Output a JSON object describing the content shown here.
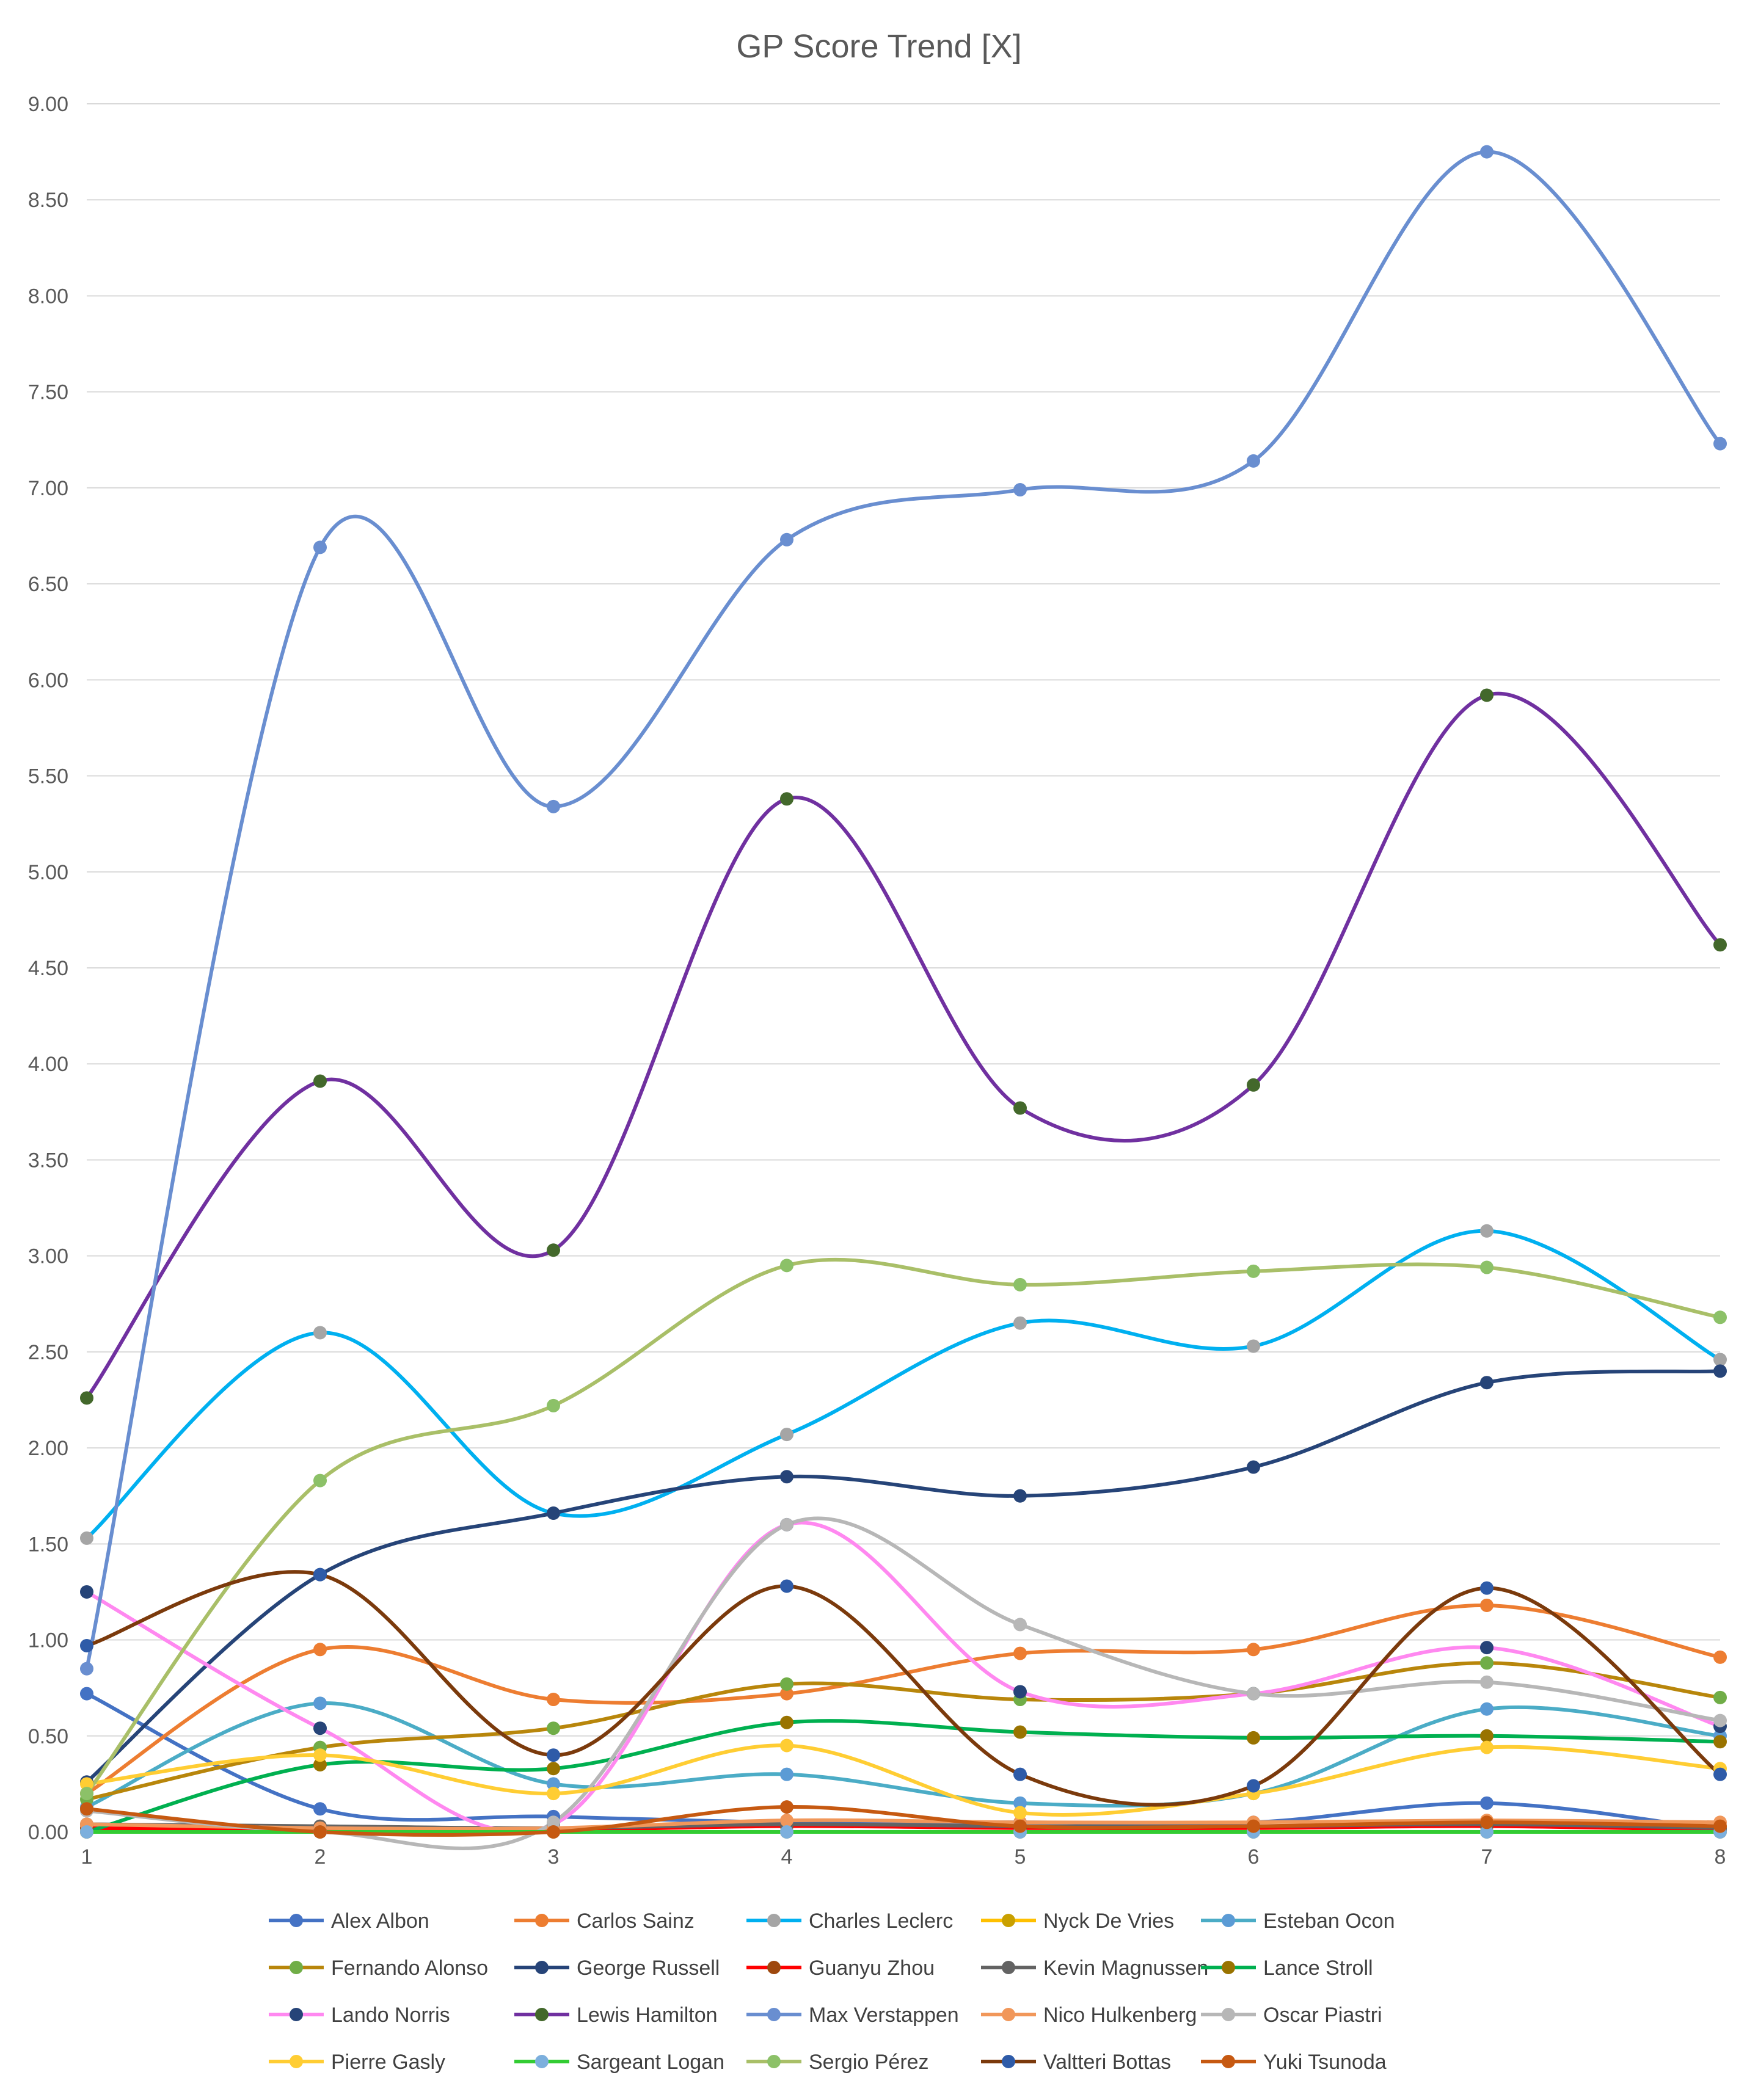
{
  "chart_data": {
    "type": "line",
    "title": "GP Score Trend [X]",
    "xlabel": "",
    "ylabel": "",
    "x": [
      1,
      2,
      3,
      4,
      5,
      6,
      7,
      8
    ],
    "ylim": [
      0,
      9
    ],
    "ytick_step": 0.5,
    "grid": true,
    "smooth": true,
    "legend_position": "bottom",
    "series": [
      {
        "name": "Alex Albon",
        "color": "#4472C4",
        "values": [
          0.72,
          0.12,
          0.08,
          0.05,
          0.05,
          0.05,
          0.15,
          0.01
        ]
      },
      {
        "name": "Carlos Sainz",
        "color": "#ED7D31",
        "values": [
          0.2,
          0.95,
          0.69,
          0.72,
          0.93,
          0.95,
          1.18,
          0.91
        ]
      },
      {
        "name": "Charles Leclerc",
        "color": "#00B0F0",
        "marker_color": "#A5A5A5",
        "values": [
          1.53,
          2.6,
          1.66,
          2.07,
          2.65,
          2.53,
          3.13,
          2.46
        ]
      },
      {
        "name": "Nyck De Vries",
        "color": "#FFC000",
        "marker_color": "#C9A000",
        "values": [
          0.0,
          0.0,
          0.0,
          0.0,
          0.0,
          0.0,
          0.0,
          0.0
        ]
      },
      {
        "name": "Esteban Ocon",
        "color": "#4BACC6",
        "marker_color": "#5B9BD5",
        "values": [
          0.13,
          0.67,
          0.25,
          0.3,
          0.15,
          0.2,
          0.64,
          0.5
        ]
      },
      {
        "name": "Fernando Alonso",
        "color": "#B8860B",
        "marker_color": "#70AD47",
        "values": [
          0.17,
          0.44,
          0.54,
          0.77,
          0.69,
          0.72,
          0.88,
          0.7
        ]
      },
      {
        "name": "George Russell",
        "color": "#264478",
        "values": [
          0.26,
          1.34,
          1.66,
          1.85,
          1.75,
          1.9,
          2.34,
          2.4
        ]
      },
      {
        "name": "Guanyu Zhou",
        "color": "#FF0000",
        "marker_color": "#9E480E",
        "values": [
          0.02,
          0.01,
          0.01,
          0.03,
          0.02,
          0.02,
          0.03,
          0.01
        ]
      },
      {
        "name": "Kevin Magnussen",
        "color": "#636363",
        "values": [
          0.04,
          0.03,
          0.02,
          0.04,
          0.03,
          0.03,
          0.04,
          0.02
        ]
      },
      {
        "name": "Lance Stroll",
        "color": "#00B050",
        "marker_color": "#997300",
        "values": [
          0.0,
          0.35,
          0.33,
          0.57,
          0.52,
          0.49,
          0.5,
          0.47
        ]
      },
      {
        "name": "Lando Norris",
        "color": "#FF88F0",
        "marker_color": "#264478",
        "values": [
          1.25,
          0.54,
          0.04,
          1.6,
          0.73,
          0.72,
          0.96,
          0.55
        ]
      },
      {
        "name": "Lewis Hamilton",
        "color": "#7030A0",
        "marker_color": "#43682B",
        "values": [
          2.26,
          3.91,
          3.03,
          5.38,
          3.77,
          3.89,
          5.92,
          4.62
        ]
      },
      {
        "name": "Max Verstappen",
        "color": "#698ED0",
        "values": [
          0.85,
          6.69,
          5.34,
          6.73,
          6.99,
          7.14,
          8.75,
          7.23
        ]
      },
      {
        "name": "Nico Hulkenberg",
        "color": "#F1975A",
        "values": [
          0.04,
          0.02,
          0.02,
          0.06,
          0.05,
          0.05,
          0.06,
          0.05
        ]
      },
      {
        "name": "Oscar Piastri",
        "color": "#B7B7B7",
        "values": [
          0.11,
          0.0,
          0.05,
          1.6,
          1.08,
          0.72,
          0.78,
          0.58
        ]
      },
      {
        "name": "Pierre Gasly",
        "color": "#FFCD33",
        "values": [
          0.25,
          0.4,
          0.2,
          0.45,
          0.1,
          0.2,
          0.44,
          0.33
        ]
      },
      {
        "name": "Sargeant Logan",
        "color": "#33CC33",
        "marker_color": "#7CAFDD",
        "values": [
          0.0,
          0.0,
          0.0,
          0.0,
          0.0,
          0.0,
          0.0,
          0.0
        ]
      },
      {
        "name": "Sergio Pérez",
        "color": "#A9BF68",
        "marker_color": "#8CC168",
        "values": [
          0.2,
          1.83,
          2.22,
          2.95,
          2.85,
          2.92,
          2.94,
          2.68
        ]
      },
      {
        "name": "Valtteri Bottas",
        "color": "#7B3A0C",
        "marker_color": "#2E5BA8",
        "values": [
          0.97,
          1.34,
          0.4,
          1.28,
          0.3,
          0.24,
          1.27,
          0.3
        ]
      },
      {
        "name": "Yuki Tsunoda",
        "color": "#C65911",
        "values": [
          0.12,
          0.0,
          0.0,
          0.13,
          0.03,
          0.03,
          0.05,
          0.03
        ]
      }
    ]
  }
}
